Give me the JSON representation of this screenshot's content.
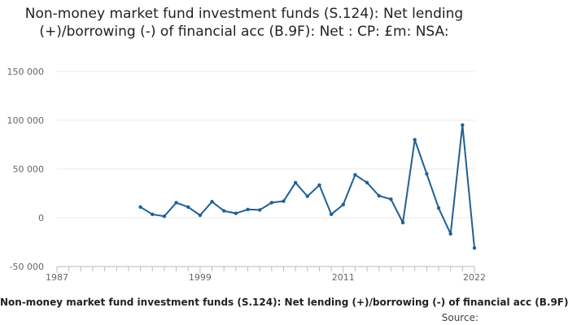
{
  "chart_data": {
    "type": "line",
    "title": "Non-money market fund investment funds (S.124): Net lending (+)/borrowing (-) of financial acc (B.9F): Net : CP: £m: NSA:",
    "legend": "Non-money market fund investment funds (S.124): Net lending (+)/borrowing (-) of financial acc (B.9F)",
    "source_label": "Source:",
    "xlim": [
      1987,
      2022
    ],
    "ylim": [
      -50000,
      150000
    ],
    "x_ticks": [
      1987,
      1999,
      2011,
      2022
    ],
    "y_ticks": [
      -50000,
      0,
      50000,
      100000,
      150000
    ],
    "y_tick_labels": [
      "-50 000",
      "0",
      "50 000",
      "100 000",
      "150 000"
    ],
    "grid": true,
    "colors": {
      "series": "#206095",
      "grid": "#e8e8e8",
      "axis": "#bbbbbb"
    },
    "series": [
      {
        "name": "Non-money market fund investment funds (S.124): Net lending (+)/borrowing (-) of financial acc (B.9F)",
        "x": [
          1994,
          1995,
          1996,
          1997,
          1998,
          1999,
          2000,
          2001,
          2002,
          2003,
          2004,
          2005,
          2006,
          2007,
          2008,
          2009,
          2010,
          2011,
          2012,
          2013,
          2014,
          2015,
          2016,
          2017,
          2018,
          2019,
          2020,
          2021,
          2022
        ],
        "values": [
          11000,
          3500,
          1500,
          15500,
          11000,
          2500,
          16500,
          7000,
          4500,
          8500,
          8000,
          15500,
          17000,
          36000,
          22000,
          33500,
          3500,
          13500,
          44000,
          36000,
          22500,
          19000,
          -5000,
          80000,
          45000,
          10000,
          -16500,
          95000,
          -31000
        ]
      }
    ]
  }
}
